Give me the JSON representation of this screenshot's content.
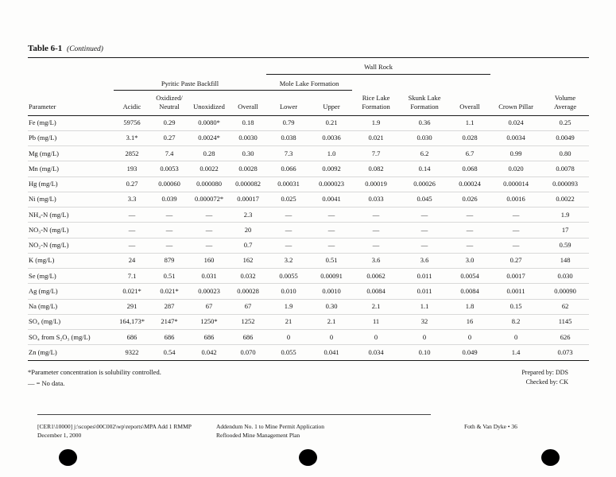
{
  "page": {
    "title": "Table 6-1",
    "title_suffix": "(Continued)"
  },
  "table": {
    "group_headers": {
      "wall_rock": "Wall Rock",
      "pyritic": "Pyritic Paste Backfill",
      "mole_lake": "Mole Lake Formation"
    },
    "columns": [
      "Parameter",
      "Acidic",
      "Oxidized/\nNeutral",
      "Unoxidized",
      "Overall",
      "Lower",
      "Upper",
      "Rice Lake\nFormation",
      "Skunk Lake\nFormation",
      "Overall",
      "Crown Pillar",
      "Volume\nAverage"
    ],
    "rows": [
      {
        "parameter": "Fe (mg/L)",
        "values": [
          "59756",
          "0.29",
          "0.0080*",
          "0.18",
          "0.79",
          "0.21",
          "1.9",
          "0.36",
          "1.1",
          "0.024",
          "0.25"
        ]
      },
      {
        "parameter": "Pb (mg/L)",
        "values": [
          "3.1*",
          "0.27",
          "0.0024*",
          "0.0030",
          "0.038",
          "0.0036",
          "0.021",
          "0.030",
          "0.028",
          "0.0034",
          "0.0049"
        ]
      },
      {
        "parameter": "Mg (mg/L)",
        "values": [
          "2852",
          "7.4",
          "0.28",
          "0.30",
          "7.3",
          "1.0",
          "7.7",
          "6.2",
          "6.7",
          "0.99",
          "0.80"
        ]
      },
      {
        "parameter": "Mn (mg/L)",
        "values": [
          "193",
          "0.0053",
          "0.0022",
          "0.0028",
          "0.066",
          "0.0092",
          "0.082",
          "0.14",
          "0.068",
          "0.020",
          "0.0078"
        ]
      },
      {
        "parameter": "Hg (mg/L)",
        "values": [
          "0.27",
          "0.00060",
          "0.000080",
          "0.000082",
          "0.00031",
          "0.000023",
          "0.00019",
          "0.00026",
          "0.00024",
          "0.000014",
          "0.000093"
        ]
      },
      {
        "parameter": "Ni (mg/L)",
        "values": [
          "3.3",
          "0.039",
          "0.000072*",
          "0.00017",
          "0.025",
          "0.0041",
          "0.033",
          "0.045",
          "0.026",
          "0.0016",
          "0.0022"
        ]
      },
      {
        "parameter": "NH₄-N (mg/L)",
        "values": [
          "—",
          "—",
          "—",
          "2.3",
          "—",
          "—",
          "—",
          "—",
          "—",
          "—",
          "1.9"
        ]
      },
      {
        "parameter": "NO₃-N (mg/L)",
        "values": [
          "—",
          "—",
          "—",
          "20",
          "—",
          "—",
          "—",
          "—",
          "—",
          "—",
          "17"
        ]
      },
      {
        "parameter": "NO₂-N (mg/L)",
        "values": [
          "—",
          "—",
          "—",
          "0.7",
          "—",
          "—",
          "—",
          "—",
          "—",
          "—",
          "0.59"
        ]
      },
      {
        "parameter": "K (mg/L)",
        "values": [
          "24",
          "879",
          "160",
          "162",
          "3.2",
          "0.51",
          "3.6",
          "3.6",
          "3.0",
          "0.27",
          "148"
        ]
      },
      {
        "parameter": "Se (mg/L)",
        "values": [
          "7.1",
          "0.51",
          "0.031",
          "0.032",
          "0.0055",
          "0.00091",
          "0.0062",
          "0.011",
          "0.0054",
          "0.0017",
          "0.030"
        ]
      },
      {
        "parameter": "Ag (mg/L)",
        "values": [
          "0.021*",
          "0.021*",
          "0.00023",
          "0.00028",
          "0.010",
          "0.0010",
          "0.0084",
          "0.011",
          "0.0084",
          "0.0011",
          "0.00090"
        ]
      },
      {
        "parameter": "Na (mg/L)",
        "values": [
          "291",
          "287",
          "67",
          "67",
          "1.9",
          "0.30",
          "2.1",
          "1.1",
          "1.8",
          "0.15",
          "62"
        ]
      },
      {
        "parameter": "SO₄ (mg/L)",
        "values": [
          "164,173*",
          "2147*",
          "1250*",
          "1252",
          "21",
          "2.1",
          "11",
          "32",
          "16",
          "8.2",
          "1145"
        ]
      },
      {
        "parameter": "SO₄ from S₂O₃ (mg/L)",
        "values": [
          "686",
          "686",
          "686",
          "686",
          "0",
          "0",
          "0",
          "0",
          "0",
          "0",
          "626"
        ]
      },
      {
        "parameter": "Zn (mg/L)",
        "values": [
          "9322",
          "0.54",
          "0.042",
          "0.070",
          "0.055",
          "0.041",
          "0.034",
          "0.10",
          "0.049",
          "1.4",
          "0.073"
        ]
      }
    ]
  },
  "footnotes": {
    "solubility": "*Parameter concentration is solubility controlled.",
    "no_data": "—  = No data.",
    "prepared_by": "Prepared by: DDS",
    "checked_by": "Checked by: CK"
  },
  "footer": {
    "left_line1": "[CER1\\10000] j:\\scopes\\00C002\\wp\\reports\\MPA Add 1 RMMP",
    "left_line2": "December 1, 2000",
    "center_line1": "Addendum No. 1 to Mine Permit Application",
    "center_line2": "Reflooded Mine Management Plan",
    "right": "Foth & Van Dyke • 36"
  }
}
